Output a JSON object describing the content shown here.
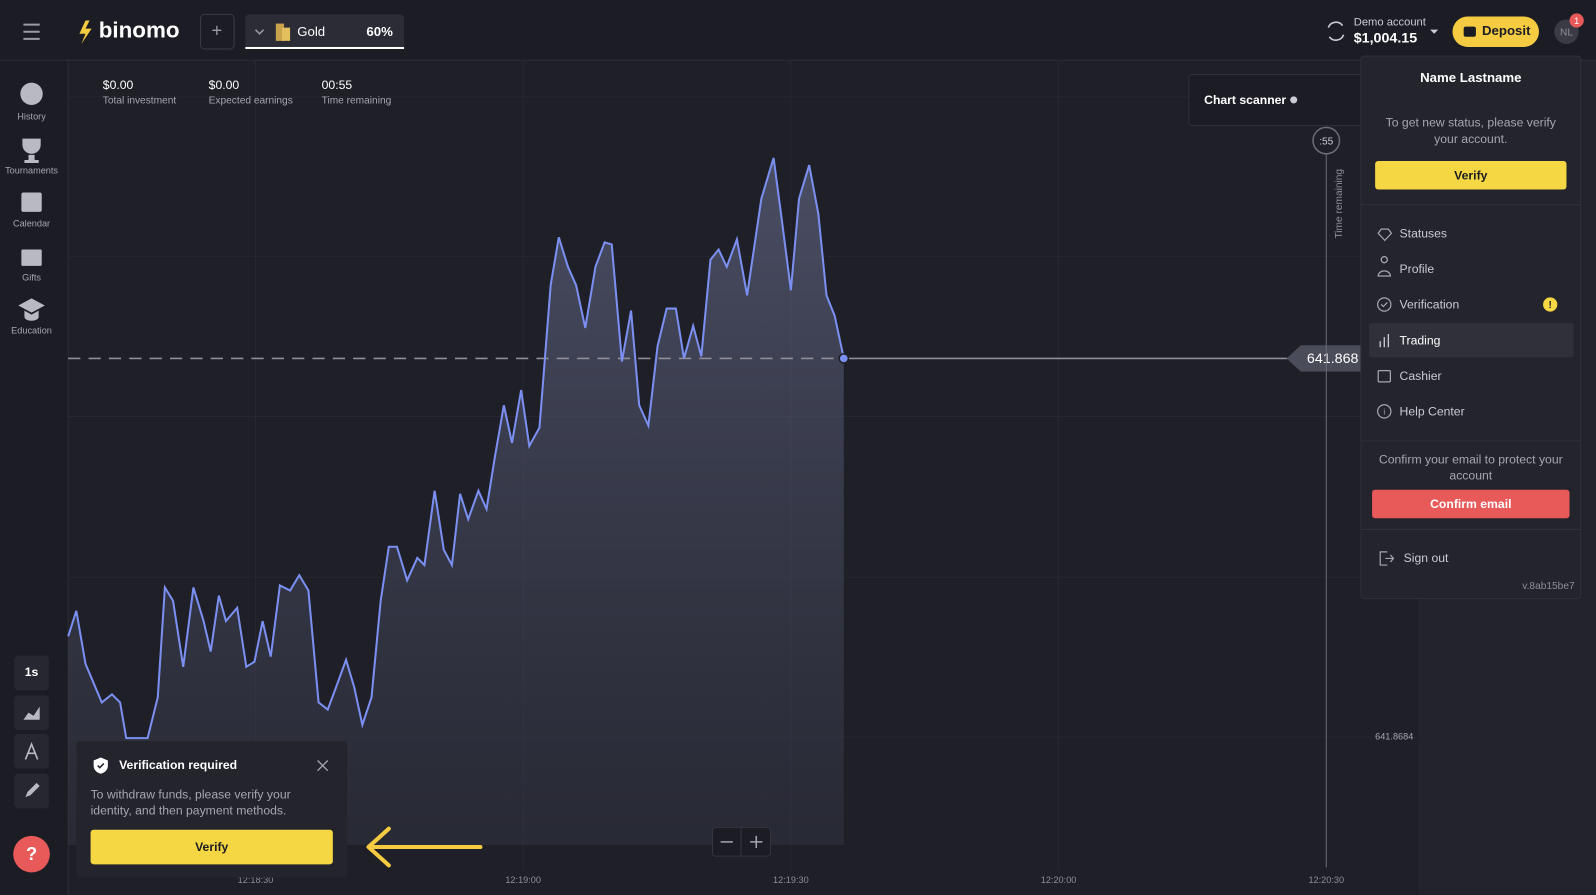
{
  "header": {
    "logo": "binomo",
    "asset": "Gold",
    "payout": "60%",
    "account_type": "Demo account",
    "balance": "$1,004.15",
    "deposit": "Deposit",
    "avatar": "NL",
    "badge": "1"
  },
  "sidebar": {
    "items": [
      "History",
      "Tournaments",
      "Calendar",
      "Gifts",
      "Education"
    ],
    "timeframe": "1s"
  },
  "stats": [
    {
      "value": "$0.00",
      "label": "Total investment"
    },
    {
      "value": "$0.00",
      "label": "Expected earnings"
    },
    {
      "value": "00:55",
      "label": "Time remaining"
    }
  ],
  "chart": {
    "scanner": "Chart scanner",
    "timer": ":55",
    "timer_label": "Time remaining",
    "current_price": "641.868",
    "price_label": "641.8684",
    "time_labels": [
      "12:18:30",
      "12:19:00",
      "12:19:30",
      "12:20:00",
      "12:20:30"
    ]
  },
  "menu": {
    "name": "Name Lastname",
    "status_lines": [
      "To get new status, please verify",
      "your account."
    ],
    "verify": "Verify",
    "items": [
      "Statuses",
      "Profile",
      "Verification",
      "Trading",
      "Cashier",
      "Help Center"
    ],
    "email_lines": [
      "Confirm your email to protect your",
      "account"
    ],
    "confirm_email": "Confirm email",
    "sign_out": "Sign out",
    "version": "v.8ab15be7"
  },
  "toast": {
    "title": "Verification required",
    "body_lines": [
      "To withdraw funds, please verify your",
      "identity, and then payment methods."
    ],
    "button": "Verify"
  }
}
